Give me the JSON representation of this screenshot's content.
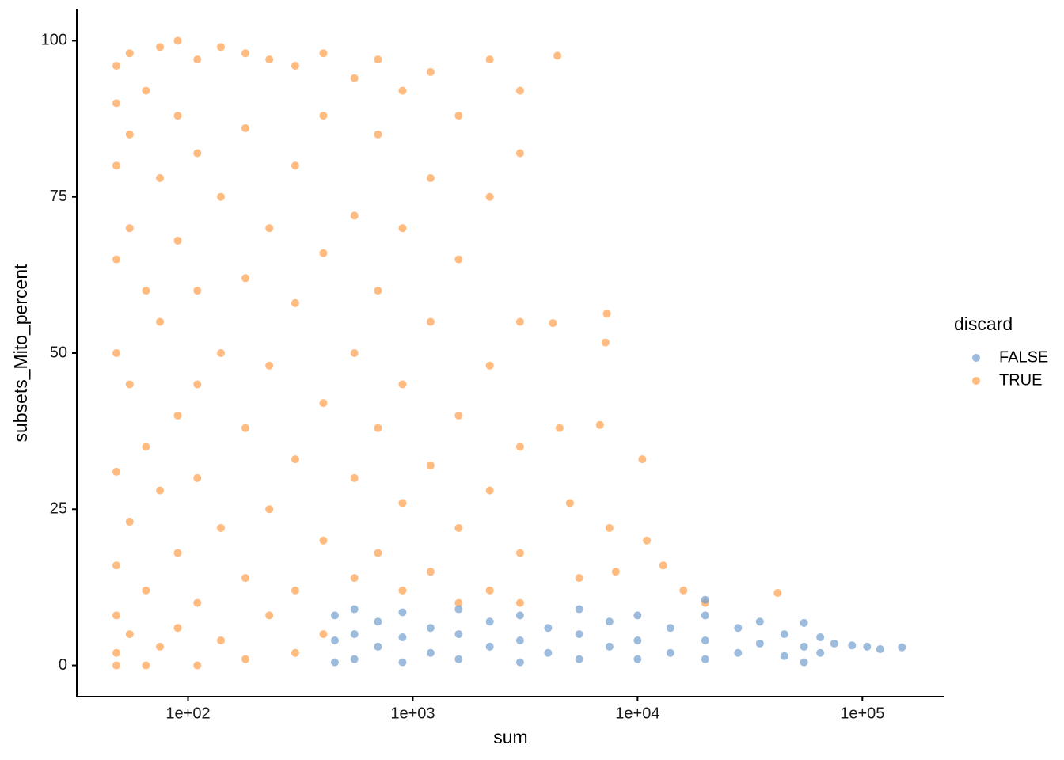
{
  "chart_data": {
    "type": "scatter",
    "x_label": "sum",
    "y_label": "subsets_Mito_percent",
    "xscale": "log",
    "grid": false,
    "legend_title": "discard",
    "legend_position": "right",
    "xlim": [
      32,
      230000
    ],
    "ylim": [
      -5,
      105
    ],
    "xticks": [
      {
        "value": 100,
        "label": "1e+02"
      },
      {
        "value": 1000,
        "label": "1e+03"
      },
      {
        "value": 10000,
        "label": "1e+04"
      },
      {
        "value": 100000,
        "label": "1e+05"
      }
    ],
    "yticks": [
      0,
      25,
      50,
      75,
      100
    ],
    "series": [
      {
        "name": "TRUE",
        "color": "#ff9e4a",
        "x": [
          48,
          48,
          48,
          48,
          48,
          48,
          48,
          48,
          48,
          48,
          55,
          55,
          55,
          55,
          55,
          55,
          65,
          65,
          65,
          65,
          65,
          75,
          75,
          75,
          75,
          75,
          90,
          90,
          90,
          90,
          90,
          90,
          110,
          110,
          110,
          110,
          110,
          110,
          110,
          140,
          140,
          140,
          140,
          140,
          180,
          180,
          180,
          180,
          180,
          180,
          230,
          230,
          230,
          230,
          230,
          300,
          300,
          300,
          300,
          300,
          300,
          400,
          400,
          400,
          400,
          400,
          400,
          550,
          550,
          550,
          550,
          550,
          700,
          700,
          700,
          700,
          700,
          900,
          900,
          900,
          900,
          900,
          1200,
          1200,
          1200,
          1200,
          1200,
          1600,
          1600,
          1600,
          1600,
          1600,
          2200,
          2200,
          2200,
          2200,
          2200,
          3000,
          3000,
          3000,
          3000,
          3000,
          3000,
          4400,
          4200,
          4500,
          5000,
          5500,
          7300,
          7200,
          6800,
          7500,
          8000,
          10500,
          11000,
          13000,
          16000,
          20000,
          42000
        ],
        "values": [
          96,
          90,
          80,
          65,
          50,
          31,
          16,
          8,
          2,
          0,
          98,
          85,
          70,
          45,
          23,
          5,
          92,
          60,
          35,
          12,
          0,
          99,
          78,
          55,
          28,
          3,
          100,
          88,
          68,
          40,
          18,
          6,
          97,
          82,
          60,
          45,
          30,
          10,
          0,
          99,
          75,
          50,
          22,
          4,
          98,
          86,
          62,
          38,
          14,
          1,
          97,
          70,
          48,
          25,
          8,
          96,
          80,
          58,
          33,
          12,
          2,
          98,
          88,
          66,
          42,
          20,
          5,
          94,
          72,
          50,
          30,
          14,
          97,
          85,
          60,
          38,
          18,
          92,
          70,
          45,
          26,
          12,
          95,
          78,
          55,
          32,
          15,
          88,
          65,
          40,
          22,
          10,
          97,
          75,
          48,
          28,
          12,
          92,
          82,
          55,
          35,
          18,
          10,
          97.6,
          54.8,
          38,
          26,
          14,
          56.3,
          51.7,
          38.5,
          22,
          15,
          33,
          20,
          16,
          12,
          10,
          11.6
        ]
      },
      {
        "name": "FALSE",
        "color": "#729ece",
        "x": [
          450,
          450,
          450,
          550,
          550,
          550,
          700,
          700,
          900,
          900,
          900,
          1200,
          1200,
          1600,
          1600,
          1600,
          2200,
          2200,
          3000,
          3000,
          3000,
          4000,
          4000,
          5500,
          5500,
          5500,
          7500,
          7500,
          10000,
          10000,
          10000,
          14000,
          14000,
          20000,
          20000,
          20000,
          20000,
          28000,
          28000,
          35000,
          35000,
          45000,
          45000,
          55000,
          55000,
          55000,
          65000,
          65000,
          75000,
          90000,
          105000,
          120000,
          150000
        ],
        "values": [
          8,
          4,
          0.5,
          9,
          5,
          1,
          7,
          3,
          8.5,
          4.5,
          0.5,
          6,
          2,
          9,
          5,
          1,
          7,
          3,
          8,
          4,
          0.5,
          6,
          2,
          9,
          5,
          1,
          7,
          3,
          8,
          4,
          1,
          6,
          2,
          10.5,
          8,
          4,
          1,
          6,
          2,
          7,
          3.5,
          5,
          1.5,
          6.8,
          3,
          0.5,
          4.5,
          2,
          3.5,
          3.2,
          3,
          2.6,
          2.9
        ]
      }
    ]
  }
}
